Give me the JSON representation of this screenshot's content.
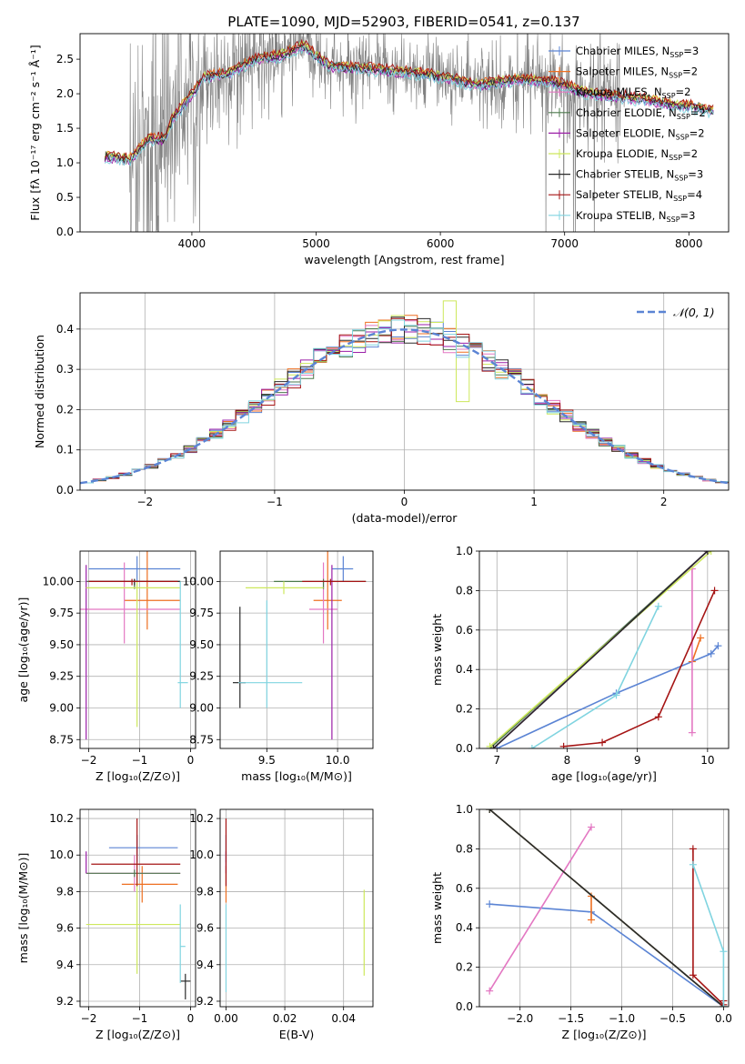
{
  "title": "PLATE=1090, MJD=52903, FIBERID=0541, z=0.137",
  "colors": [
    "#5b84d4",
    "#ee6f20",
    "#e377c2",
    "#4d7a4d",
    "#9b1fa8",
    "#cde85c",
    "#2a2a2a",
    "#a51414",
    "#80d4e0"
  ],
  "models": [
    {
      "label": "Chabrier MILES, N",
      "nssp": "=3"
    },
    {
      "label": "Salpeter MILES, N",
      "nssp": "=2"
    },
    {
      "label": "Kroupa MILES, N",
      "nssp": "=2"
    },
    {
      "label": "Chabrier ELODIE, N",
      "nssp": "=2"
    },
    {
      "label": "Salpeter ELODIE, N",
      "nssp": "=2"
    },
    {
      "label": "Kroupa ELODIE, N",
      "nssp": "=2"
    },
    {
      "label": "Chabrier STELIB, N",
      "nssp": "=3"
    },
    {
      "label": "Salpeter STELIB, N",
      "nssp": "=4"
    },
    {
      "label": "Kroupa STELIB, N",
      "nssp": "=3"
    }
  ],
  "chart_data": [
    {
      "id": "spectrum",
      "type": "line",
      "title": "PLATE=1090, MJD=52903, FIBERID=0541, z=0.137",
      "xlabel": "wavelength [Angstrom, rest frame]",
      "ylabel": "Flux [fλ 10⁻¹⁷ erg cm⁻² s⁻¹ Å⁻¹]",
      "xlim": [
        3100,
        8320
      ],
      "ylim": [
        0,
        2.87
      ],
      "xticks": [
        4000,
        5000,
        6000,
        7000,
        8000
      ],
      "yticks": [
        0.0,
        0.5,
        1.0,
        1.5,
        2.0,
        2.5
      ],
      "legend": "right",
      "continuum": [
        [
          3300,
          1.1
        ],
        [
          3500,
          1.05
        ],
        [
          3650,
          1.35
        ],
        [
          3780,
          1.35
        ],
        [
          3850,
          1.65
        ],
        [
          4000,
          2.0
        ],
        [
          4100,
          2.25
        ],
        [
          4300,
          2.3
        ],
        [
          4500,
          2.5
        ],
        [
          4700,
          2.55
        ],
        [
          4900,
          2.7
        ],
        [
          5100,
          2.4
        ],
        [
          5300,
          2.38
        ],
        [
          5500,
          2.35
        ],
        [
          5800,
          2.3
        ],
        [
          6000,
          2.25
        ],
        [
          6300,
          2.13
        ],
        [
          6600,
          2.2
        ],
        [
          6900,
          2.18
        ],
        [
          7200,
          2.0
        ],
        [
          7500,
          1.95
        ],
        [
          8000,
          1.82
        ],
        [
          8200,
          1.75
        ]
      ],
      "model_offsets": [
        0.0,
        0.03,
        -0.02,
        0.01,
        -0.03,
        0.02,
        -0.01,
        0.04,
        -0.05
      ]
    },
    {
      "id": "residuals",
      "type": "step",
      "xlabel": "(data-model)/error",
      "ylabel": "Normed distribution",
      "xlim": [
        -2.5,
        2.5
      ],
      "ylim": [
        0,
        0.49
      ],
      "xticks": [
        -2,
        -1,
        0,
        1,
        2
      ],
      "yticks": [
        0.0,
        0.1,
        0.2,
        0.3,
        0.4
      ],
      "bin_width": 0.1,
      "reference": {
        "name": "𝒩(0, 1)",
        "mean": 0,
        "sigma": 1
      },
      "legend": "top-right"
    },
    {
      "id": "age-vs-Z",
      "type": "errorbar",
      "xlabel": "Z [log₁₀(Z/Z⊙)]",
      "ylabel": "age  [log₁₀(age/yr)]",
      "xlim": [
        -2.17,
        0.1
      ],
      "ylim": [
        8.68,
        10.24
      ],
      "xticks": [
        -2,
        -1,
        0
      ],
      "yticks": [
        8.75,
        9.0,
        9.25,
        9.5,
        9.75,
        10.0
      ],
      "points": [
        {
          "model": 0,
          "x": -1.05,
          "xerr": [
            0.95,
            0.85
          ],
          "y": 10.1,
          "yerr": [
            0.1,
            0.1
          ]
        },
        {
          "model": 1,
          "x": -0.85,
          "xerr": [
            0.45,
            0.65
          ],
          "y": 9.85,
          "yerr": [
            0.23,
            0.4
          ]
        },
        {
          "model": 2,
          "x": -1.3,
          "xerr": [
            0.9,
            1.1
          ],
          "y": 9.78,
          "yerr": [
            0.27,
            0.37
          ]
        },
        {
          "model": 3,
          "x": -1.1,
          "xerr": [
            0.95,
            0.9
          ],
          "y": 10.0,
          "yerr": [
            0.06,
            0.02
          ]
        },
        {
          "model": 4,
          "x": -2.05,
          "xerr": [
            0.0,
            0.0
          ],
          "y": 9.45,
          "yerr": [
            0.7,
            0.68
          ]
        },
        {
          "model": 5,
          "x": -1.05,
          "xerr": [
            1.0,
            0.85
          ],
          "y": 9.95,
          "yerr": [
            1.1,
            0.05
          ]
        },
        {
          "model": 6,
          "x": -1.1,
          "xerr": [
            0.9,
            0.9
          ],
          "y": 10.0,
          "yerr": [
            0.03,
            0.02
          ]
        },
        {
          "model": 7,
          "x": -1.15,
          "xerr": [
            0.85,
            0.9
          ],
          "y": 10.0,
          "yerr": [
            0.03,
            0.02
          ]
        },
        {
          "model": 8,
          "x": -0.2,
          "xerr": [
            0.05,
            0.15
          ],
          "y": 9.2,
          "yerr": [
            0.2,
            0.8
          ]
        }
      ]
    },
    {
      "id": "age-vs-mass",
      "type": "errorbar",
      "xlabel": "mass [log₁₀(M/M⊙)]",
      "ylabel": "",
      "xlim": [
        9.17,
        10.25
      ],
      "ylim": [
        8.68,
        10.24
      ],
      "xticks": [
        9.5,
        10.0
      ],
      "yticks": [
        8.75,
        9.0,
        9.25,
        9.5,
        9.75,
        10.0
      ],
      "points": [
        {
          "model": 0,
          "x": 10.04,
          "xerr": [
            0.08,
            0.07
          ],
          "y": 10.1,
          "yerr": [
            0.1,
            0.1
          ]
        },
        {
          "model": 1,
          "x": 9.93,
          "xerr": [
            0.1,
            0.1
          ],
          "y": 9.85,
          "yerr": [
            0.23,
            0.4
          ]
        },
        {
          "model": 2,
          "x": 9.9,
          "xerr": [
            0.1,
            0.1
          ],
          "y": 9.78,
          "yerr": [
            0.27,
            0.37
          ]
        },
        {
          "model": 3,
          "x": 9.9,
          "xerr": [
            0.35,
            0.3
          ],
          "y": 10.0,
          "yerr": [
            0.06,
            0.02
          ]
        },
        {
          "model": 4,
          "x": 9.96,
          "xerr": [
            0.0,
            0.0
          ],
          "y": 9.45,
          "yerr": [
            0.7,
            0.68
          ]
        },
        {
          "model": 5,
          "x": 9.62,
          "xerr": [
            0.27,
            0.28
          ],
          "y": 9.95,
          "yerr": [
            0.05,
            0.05
          ]
        },
        {
          "model": 6,
          "x": 9.31,
          "xerr": [
            0.05,
            0.04
          ],
          "y": 9.2,
          "yerr": [
            0.2,
            0.6
          ]
        },
        {
          "model": 7,
          "x": 9.95,
          "xerr": [
            0.2,
            0.25
          ],
          "y": 10.0,
          "yerr": [
            0.03,
            0.02
          ]
        },
        {
          "model": 8,
          "x": 9.5,
          "xerr": [
            0.2,
            0.25
          ],
          "y": 9.2,
          "yerr": [
            0.2,
            0.65
          ]
        }
      ]
    },
    {
      "id": "mass-weight-vs-age",
      "type": "line",
      "xlabel": "age  [log₁₀(age/yr)]",
      "ylabel": "mass weight",
      "xlim": [
        6.75,
        10.3
      ],
      "ylim": [
        0,
        1.0
      ],
      "xticks": [
        7,
        8,
        9,
        10
      ],
      "yticks": [
        0.0,
        0.2,
        0.4,
        0.6,
        0.8,
        1.0
      ],
      "series": [
        {
          "model": 0,
          "x": [
            7.0,
            8.7,
            10.05,
            10.15
          ],
          "y": [
            0.0,
            0.28,
            0.48,
            0.52
          ]
        },
        {
          "model": 1,
          "x": [
            9.78,
            9.9
          ],
          "y": [
            0.44,
            0.56
          ]
        },
        {
          "model": 2,
          "x": [
            9.78,
            9.78
          ],
          "y": [
            0.08,
            0.91
          ]
        },
        {
          "model": 3,
          "x": [
            6.9,
            10.0
          ],
          "y": [
            0.0,
            1.0
          ]
        },
        {
          "model": 4,
          "x": [
            6.95,
            10.0
          ],
          "y": [
            0.0,
            1.0
          ]
        },
        {
          "model": 5,
          "x": [
            6.9,
            10.05
          ],
          "y": [
            0.01,
            1.0
          ]
        },
        {
          "model": 6,
          "x": [
            6.95,
            10.0
          ],
          "y": [
            0.0,
            1.0
          ]
        },
        {
          "model": 7,
          "x": [
            7.95,
            8.5,
            9.3,
            10.1
          ],
          "y": [
            0.01,
            0.03,
            0.16,
            0.8
          ]
        },
        {
          "model": 8,
          "x": [
            7.5,
            8.7,
            9.3
          ],
          "y": [
            0.0,
            0.27,
            0.72
          ]
        }
      ]
    },
    {
      "id": "mass-vs-Z",
      "type": "errorbar",
      "xlabel": "Z [log₁₀(Z/Z⊙)]",
      "ylabel": "mass [log₁₀(M/M⊙)]",
      "xlim": [
        -2.17,
        0.1
      ],
      "ylim": [
        9.17,
        10.25
      ],
      "xticks": [
        -2,
        -1,
        0
      ],
      "yticks": [
        9.2,
        9.4,
        9.6,
        9.8,
        10.0,
        10.2
      ],
      "points": [
        {
          "model": 0,
          "x": -1.05,
          "xerr": [
            0.55,
            0.8
          ],
          "y": 10.04,
          "yerr": [
            0.08,
            0.07
          ]
        },
        {
          "model": 1,
          "x": -0.95,
          "xerr": [
            0.4,
            0.7
          ],
          "y": 9.84,
          "yerr": [
            0.1,
            0.1
          ]
        },
        {
          "model": 2,
          "x": -1.1,
          "xerr": [
            0.95,
            0.9
          ],
          "y": 9.9,
          "yerr": [
            0.1,
            0.1
          ]
        },
        {
          "model": 3,
          "x": -1.1,
          "xerr": [
            0.95,
            0.9
          ],
          "y": 9.9,
          "yerr": [
            0.02,
            0.02
          ]
        },
        {
          "model": 4,
          "x": -2.05,
          "xerr": [
            0.0,
            0.0
          ],
          "y": 9.96,
          "yerr": [
            0.06,
            0.06
          ]
        },
        {
          "model": 5,
          "x": -1.05,
          "xerr": [
            1.0,
            0.85
          ],
          "y": 9.62,
          "yerr": [
            0.27,
            0.28
          ]
        },
        {
          "model": 6,
          "x": -0.1,
          "xerr": [
            0.1,
            0.1
          ],
          "y": 9.31,
          "yerr": [
            0.1,
            0.04
          ]
        },
        {
          "model": 7,
          "x": -1.05,
          "xerr": [
            0.9,
            0.85
          ],
          "y": 9.95,
          "yerr": [
            0.12,
            0.25
          ]
        },
        {
          "model": 8,
          "x": -0.2,
          "xerr": [
            0.0,
            0.1
          ],
          "y": 9.5,
          "yerr": [
            0.2,
            0.23
          ]
        }
      ]
    },
    {
      "id": "mass-vs-EBV",
      "type": "errorbar",
      "xlabel": "E(B-V)",
      "ylabel": "",
      "xlim": [
        -0.002,
        0.05
      ],
      "ylim": [
        9.17,
        10.25
      ],
      "xticks": [
        0.0,
        0.02,
        0.04
      ],
      "yticks": [
        9.2,
        9.4,
        9.6,
        9.8,
        10.0,
        10.2
      ],
      "points": [
        {
          "model": 0,
          "x": 0.0,
          "xerr": [
            0,
            0
          ],
          "y": 10.04,
          "yerr": [
            0.08,
            0.07
          ]
        },
        {
          "model": 1,
          "x": 0.0,
          "xerr": [
            0,
            0
          ],
          "y": 9.84,
          "yerr": [
            0.1,
            0.1
          ]
        },
        {
          "model": 4,
          "x": 0.0,
          "xerr": [
            0,
            0
          ],
          "y": 9.96,
          "yerr": [
            0.06,
            0.06
          ]
        },
        {
          "model": 7,
          "x": 0.0,
          "xerr": [
            0,
            0
          ],
          "y": 9.95,
          "yerr": [
            0.12,
            0.25
          ]
        },
        {
          "model": 8,
          "x": 0.0,
          "xerr": [
            0,
            0
          ],
          "y": 9.5,
          "yerr": [
            0.25,
            0.23
          ]
        },
        {
          "model": 5,
          "x": 0.047,
          "xerr": [
            0,
            0
          ],
          "y": 9.58,
          "yerr": [
            0.24,
            0.23
          ]
        }
      ]
    },
    {
      "id": "mass-weight-vs-Z",
      "type": "line",
      "xlabel": "Z [log₁₀(Z/Z⊙)]",
      "ylabel": "mass weight",
      "xlim": [
        -2.4,
        0.05
      ],
      "ylim": [
        0,
        1.0
      ],
      "xticks": [
        -2.0,
        -1.5,
        -1.0,
        -0.5,
        0.0
      ],
      "yticks": [
        0.0,
        0.2,
        0.4,
        0.6,
        0.8,
        1.0
      ],
      "series": [
        {
          "model": 0,
          "x": [
            -2.3,
            -1.3,
            0.0
          ],
          "y": [
            0.52,
            0.48,
            0.0
          ]
        },
        {
          "model": 1,
          "x": [
            -1.3,
            -1.3
          ],
          "y": [
            0.44,
            0.56
          ]
        },
        {
          "model": 2,
          "x": [
            -2.3,
            -1.3
          ],
          "y": [
            0.08,
            0.91
          ]
        },
        {
          "model": 3,
          "x": [
            -2.3,
            0.0
          ],
          "y": [
            1.0,
            0.0
          ]
        },
        {
          "model": 4,
          "x": [
            -2.3,
            0.0
          ],
          "y": [
            1.0,
            0.0
          ]
        },
        {
          "model": 5,
          "x": [
            -2.3,
            0.0
          ],
          "y": [
            1.0,
            0.0
          ]
        },
        {
          "model": 6,
          "x": [
            -2.3,
            0.0
          ],
          "y": [
            1.0,
            0.0
          ]
        },
        {
          "model": 7,
          "x": [
            -0.3,
            -0.3,
            0.0,
            0.0
          ],
          "y": [
            0.8,
            0.16,
            0.01,
            0.03
          ]
        },
        {
          "model": 8,
          "x": [
            -0.3,
            0.0,
            0.0
          ],
          "y": [
            0.72,
            0.28,
            0.0
          ]
        }
      ]
    }
  ]
}
